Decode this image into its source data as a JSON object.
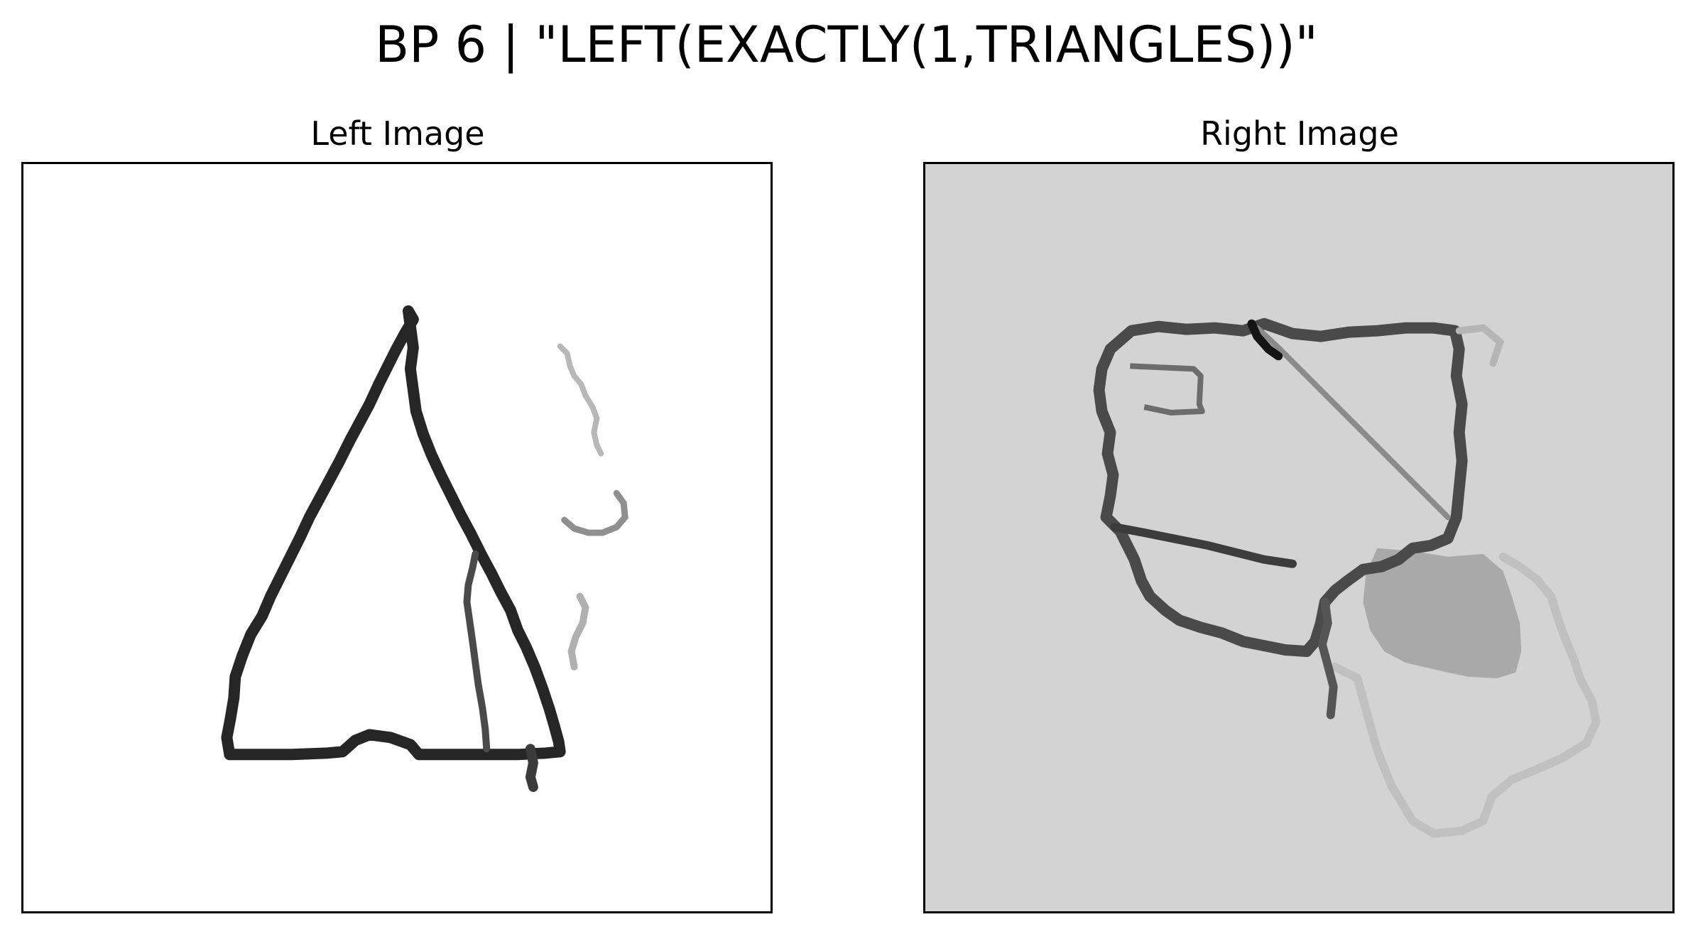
{
  "figure": {
    "title": "BP 6 | \"LEFT(EXACTLY(1,TRIANGLES))\""
  },
  "panels": {
    "left": {
      "title": "Left Image",
      "background": "#ffffff"
    },
    "right": {
      "title": "Right Image",
      "background": "#d3d3d3"
    }
  },
  "colors": {
    "ink_dark": "#1c1c1c",
    "ink_mid": "#5a5a5a",
    "ink_light": "#a8a8a8",
    "ink_faint": "#c4c4c4",
    "frame": "#000000"
  }
}
